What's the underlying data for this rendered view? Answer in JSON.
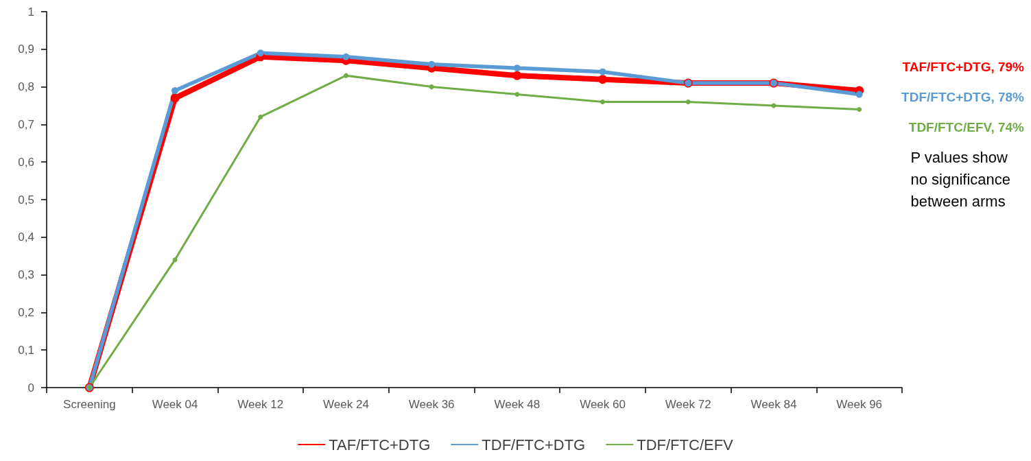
{
  "chart_data": {
    "type": "line",
    "categories": [
      "Screening",
      "Week 04",
      "Week 12",
      "Week 24",
      "Week 36",
      "Week 48",
      "Week 60",
      "Week 72",
      "Week 84",
      "Week 96"
    ],
    "series": [
      {
        "name": "TAF/FTC+DTG",
        "color": "#ff0000",
        "values": [
          0,
          0.77,
          0.88,
          0.87,
          0.85,
          0.83,
          0.82,
          0.81,
          0.81,
          0.79
        ]
      },
      {
        "name": "TDF/FTC+DTG",
        "color": "#5b9bd5",
        "values": [
          0,
          0.79,
          0.89,
          0.88,
          0.86,
          0.85,
          0.84,
          0.81,
          0.81,
          0.78
        ]
      },
      {
        "name": "TDF/FTC/EFV",
        "color": "#70ad47",
        "values": [
          0,
          0.34,
          0.72,
          0.83,
          0.8,
          0.78,
          0.76,
          0.76,
          0.75,
          0.74
        ]
      }
    ],
    "ylim": [
      0,
      1
    ],
    "yticks": [
      0,
      {
        "value": 0.1,
        "label": "0,1"
      },
      {
        "value": 0.2,
        "label": "0,2"
      },
      {
        "value": 0.3,
        "label": "0,3"
      },
      {
        "value": 0.4,
        "label": "0,4"
      },
      {
        "value": 0.5,
        "label": "0,5"
      },
      {
        "value": 0.6,
        "label": "0,6"
      },
      {
        "value": 0.7,
        "label": "0,7"
      },
      {
        "value": 0.8,
        "label": "0,8"
      },
      {
        "value": 0.9,
        "label": "0,9"
      },
      1
    ],
    "annotations": [
      "TAF/FTC+DTG, 79%",
      "TDF/FTC+DTG, 78%",
      "TDF/FTC/EFV, 74%",
      "P values show\nno significance\nbetween arms"
    ],
    "grid": false,
    "legend": "bottom",
    "marker": "circle",
    "line_style": "solid"
  }
}
